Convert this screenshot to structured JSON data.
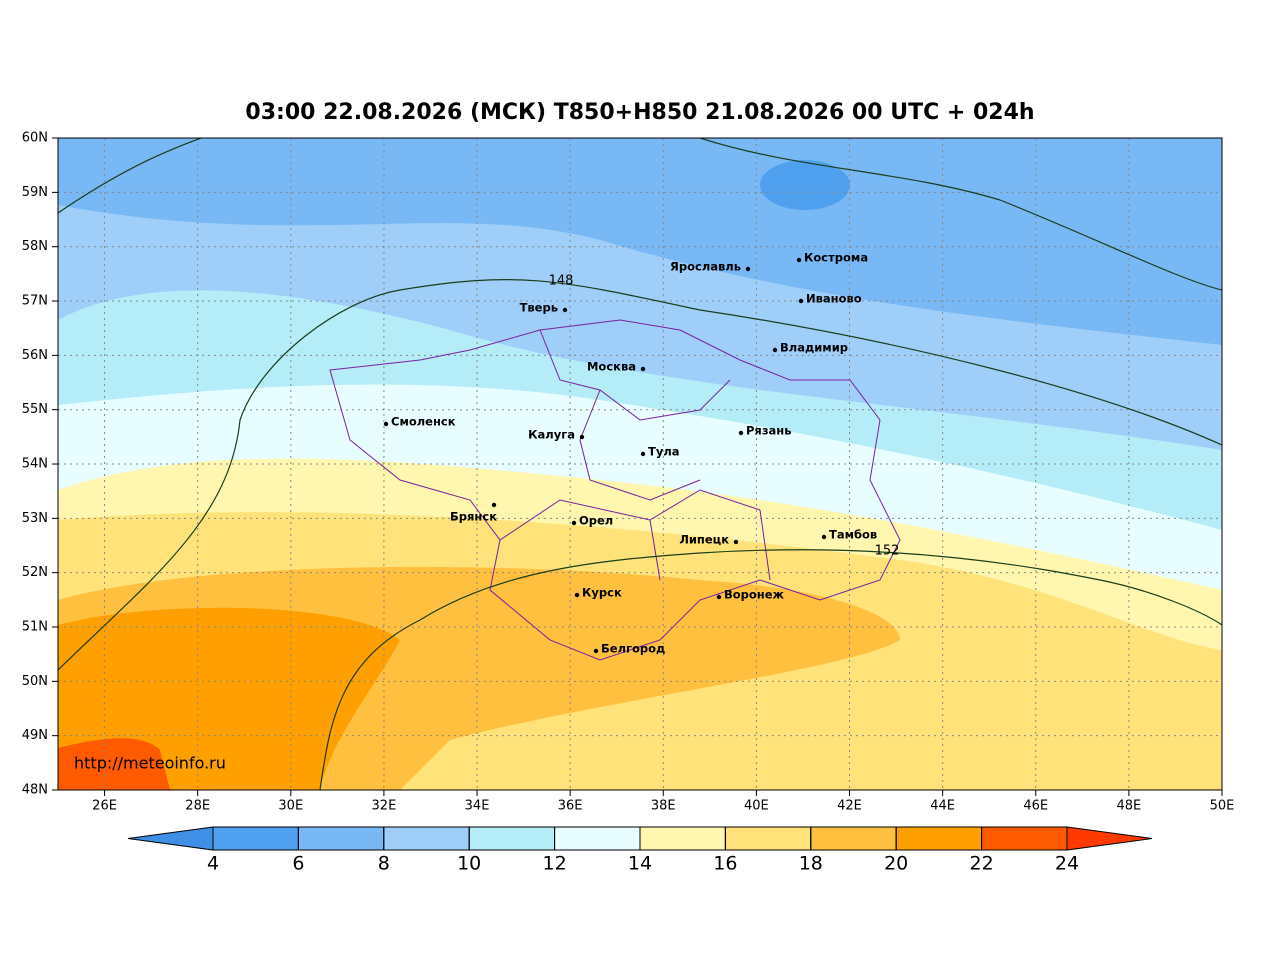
{
  "title": "03:00 22.08.2026 (МСК) T850+H850 21.08.2026 00 UTC + 024h",
  "lat_labels": [
    "48N",
    "49N",
    "50N",
    "51N",
    "52N",
    "53N",
    "54N",
    "55N",
    "56N",
    "57N",
    "58N",
    "59N",
    "60N"
  ],
  "lon_labels": [
    "26E",
    "28E",
    "30E",
    "32E",
    "34E",
    "36E",
    "38E",
    "40E",
    "42E",
    "44E",
    "46E",
    "48E",
    "50E"
  ],
  "cities": [
    "Кострома",
    "Ярославль",
    "Иваново",
    "Тверь",
    "Владимир",
    "Москва",
    "Смоленск",
    "Калуга",
    "Рязань",
    "Тула",
    "Брянск",
    "Орел",
    "Липецк",
    "Тамбов",
    "Курск",
    "Воронеж",
    "Белгород"
  ],
  "contour_labels": [
    "148",
    "152"
  ],
  "colorbar": {
    "ticks": [
      4,
      6,
      8,
      10,
      12,
      14,
      16,
      18,
      20,
      22,
      24
    ],
    "colors": [
      "#3f8fe6",
      "#4fa0ef",
      "#78b8f5",
      "#9fcff8",
      "#b4ecf8",
      "#e8fdff",
      "#fff6b0",
      "#ffe27a",
      "#ffc040",
      "#ff9f00",
      "#ff5a00",
      "#ff3a00"
    ]
  },
  "watermark": "http://meteoinfo.ru"
}
